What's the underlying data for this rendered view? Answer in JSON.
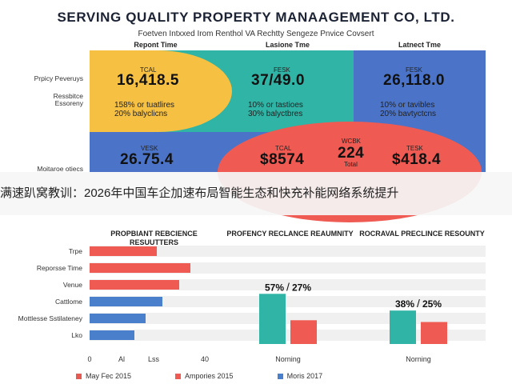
{
  "header": {
    "title": "SERVING QUALITY PROPERTY MANAAGEMENT CO, LTD.",
    "subtitle": "Foetven Intxxed Irom Renthol VA Rechtty Sengeze Pnvice Covsert"
  },
  "colors": {
    "yellow": "#f6c042",
    "teal": "#2fb4a6",
    "blue": "#4b74c8",
    "red": "#ef5b52",
    "bar_blue": "#4a7fcc"
  },
  "top_panel": {
    "column_headers": [
      "Repont Time",
      "Lasione Tme",
      "Latnect Tme"
    ],
    "row_labels": [
      "Prpicy Peveruys",
      "Ressbitce Essoreny",
      "Moitaroe otiecs"
    ],
    "cells": [
      {
        "tag": "TCAL",
        "value": "16,418.5",
        "lines": [
          "158% or tuatlires",
          "20% balyclicns"
        ]
      },
      {
        "tag": "FESK",
        "value": "37/49.0",
        "lines": [
          "10% or tastioes",
          "30% balyctbres"
        ]
      },
      {
        "tag": "FESK",
        "value": "26,118.0",
        "lines": [
          "10% or tavibles",
          "20% bavtyctcns"
        ]
      },
      {
        "tag": "VESK",
        "value": "26.75.4",
        "lines": []
      },
      {
        "tag": "TCAL",
        "value": "$8574",
        "lines": []
      },
      {
        "tag": "WCBK",
        "value": "224",
        "lines": [
          "Total"
        ]
      },
      {
        "tag": "TESK",
        "value": "$418.4",
        "lines": []
      }
    ]
  },
  "banner": {
    "text": "满速趴窝教训：2026年中国车企加速布局智能生态和快充补能网络系统提升"
  },
  "chart_data": [
    {
      "type": "bar",
      "title": "PROPBIANT REBCIENCE RESUUTTERS",
      "orientation": "horizontal",
      "categories": [
        "Trpe",
        "Reporsse Time",
        "Venue",
        "Cattlome",
        "Mottlesse Sstilateney",
        "Lko"
      ],
      "values": [
        12,
        18,
        16,
        13,
        10,
        8
      ],
      "bar_colors": [
        "red",
        "red",
        "red",
        "blue",
        "blue",
        "blue"
      ],
      "xticks": [
        "0",
        "Al",
        "Lss",
        "40"
      ],
      "xlim": [
        0,
        40
      ]
    },
    {
      "type": "bar",
      "title": "PROFENCY RECLANCE REAUMNITY",
      "categories": [
        "Norning"
      ],
      "series": [
        {
          "values": [
            57
          ]
        },
        {
          "values": [
            27
          ]
        }
      ],
      "annotation_left": "57%",
      "annotation_sep": "/",
      "annotation_right": "27%",
      "xlabel": "Norning",
      "ylim": [
        0,
        100
      ]
    },
    {
      "type": "bar",
      "title": "ROCRAVAL PRECLINCE RESOUNTY",
      "categories": [
        "Norning"
      ],
      "series": [
        {
          "values": [
            38
          ]
        },
        {
          "values": [
            25
          ]
        }
      ],
      "annotation_left": "38%",
      "annotation_sep": "/",
      "annotation_right": "25%",
      "xlabel": "Norning",
      "ylim": [
        0,
        100
      ]
    }
  ],
  "legend": [
    {
      "label": "May Fec 2015",
      "color": "#e55b52"
    },
    {
      "label": "Ampories 2015",
      "color": "#ef5b52"
    },
    {
      "label": "Moris 2017",
      "color": "#4a7fcc"
    }
  ]
}
